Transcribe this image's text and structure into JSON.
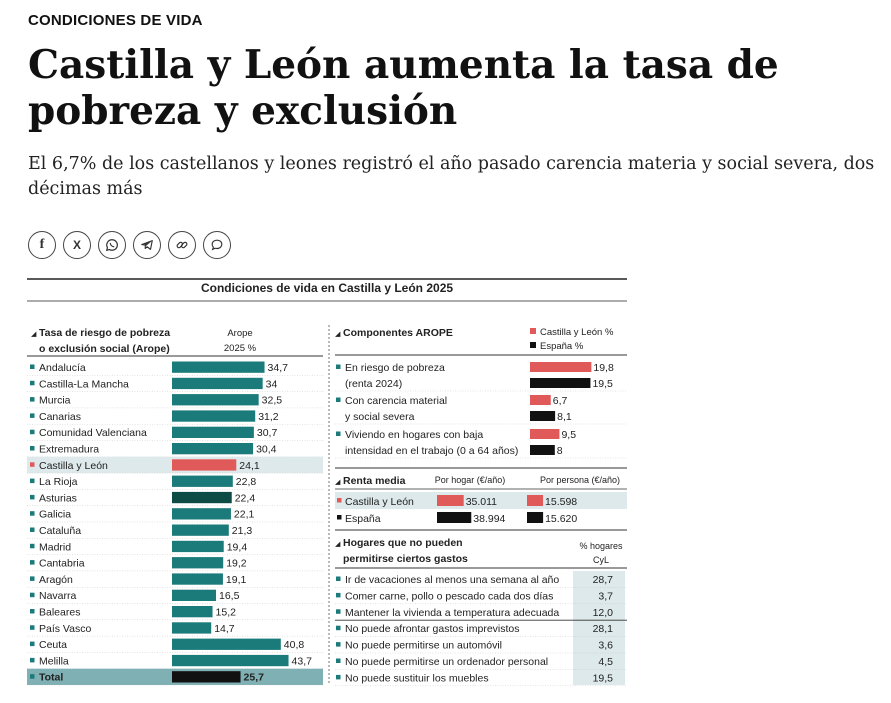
{
  "article": {
    "kicker": "CONDICIONES DE VIDA",
    "headline": "Castilla y León aumenta la tasa de pobreza y exclusión",
    "subtitle": "El 6,7% de los castellanos y leones registró el año pasado carencia materia y social severa, dos décimas más"
  },
  "share_buttons": [
    {
      "name": "facebook",
      "glyph": "f"
    },
    {
      "name": "x",
      "glyph": "X"
    },
    {
      "name": "whatsapp",
      "glyph": ""
    },
    {
      "name": "telegram",
      "glyph": ""
    },
    {
      "name": "link",
      "glyph": ""
    },
    {
      "name": "comment",
      "glyph": ""
    }
  ],
  "colors": {
    "teal": "#1b7a7a",
    "dark_teal": "#0e4b45",
    "red": "#e05a5a",
    "black": "#111111",
    "highlight": "#dde9ea"
  },
  "chart_data": [
    {
      "type": "bar",
      "title": "Condiciones de vida en Castilla y León 2025",
      "panel_title": "Tasa de riesgo de pobreza o exclusión social (Arope)",
      "col_header": "Arope 2025 %",
      "categories": [
        "Andalucía",
        "Castilla-La Mancha",
        "Murcia",
        "Canarias",
        "Comunidad Valenciana",
        "Extremadura",
        "Castilla y León",
        "La Rioja",
        "Asturias",
        "Galicia",
        "Cataluña",
        "Madrid",
        "Cantabria",
        "Aragón",
        "Navarra",
        "Baleares",
        "País Vasco",
        "Ceuta",
        "Melilla",
        "Total"
      ],
      "labels": [
        "34,7",
        "34",
        "32,5",
        "31,2",
        "30,7",
        "30,4",
        "24,1",
        "22,8",
        "22,4",
        "22,1",
        "21,3",
        "19,4",
        "19,2",
        "19,1",
        "16,5",
        "15,2",
        "14,7",
        "40,8",
        "43,7",
        "25,7"
      ],
      "values": [
        34.7,
        34,
        32.5,
        31.2,
        30.7,
        30.4,
        24.1,
        22.8,
        22.4,
        22.1,
        21.3,
        19.4,
        19.2,
        19.1,
        16.5,
        15.2,
        14.7,
        40.8,
        43.7,
        25.7
      ],
      "highlight": "Castilla y León"
    },
    {
      "type": "bar",
      "panel_title": "Componentes AROPE",
      "legend": [
        "Castilla y León %",
        "España %"
      ],
      "groups": [
        {
          "label": [
            "En riesgo de pobreza",
            "(renta 2024)"
          ],
          "cyl": 19.8,
          "esp": 19.5,
          "cyl_label": "19,8",
          "esp_label": "19,5"
        },
        {
          "label": [
            "Con carencia material",
            "y social severa"
          ],
          "cyl": 6.7,
          "esp": 8.1,
          "cyl_label": "6,7",
          "esp_label": "8,1"
        },
        {
          "label": [
            "Viviendo en hogares con baja",
            "intensidad en el trabajo (0 a 64 años)"
          ],
          "cyl": 9.5,
          "esp": 8,
          "cyl_label": "9,5",
          "esp_label": "8"
        }
      ]
    },
    {
      "type": "bar",
      "panel_title": "Renta media",
      "col_headers": [
        "Por hogar (€/año)",
        "Por persona (€/año)"
      ],
      "rows": [
        {
          "name": "Castilla y León",
          "hogar": 35011,
          "persona": 15598,
          "hogar_label": "35.011",
          "persona_label": "15.598"
        },
        {
          "name": "España",
          "hogar": 38994,
          "persona": 15620,
          "hogar_label": "38.994",
          "persona_label": "15.620"
        }
      ]
    },
    {
      "type": "table",
      "panel_title": [
        "Hogares que no pueden",
        "permitirse ciertos gastos"
      ],
      "col_header": [
        "% hogares",
        "CyL"
      ],
      "rows": [
        {
          "label": "Ir de vacaciones al menos una semana al año",
          "value": "28,7"
        },
        {
          "label": "Comer carne, pollo o pescado cada dos días",
          "value": "3,7"
        },
        {
          "label": "Mantener la vivienda a temperatura adecuada",
          "value": "12,0"
        },
        {
          "label": "No puede afrontar gastos imprevistos",
          "value": "28,1"
        },
        {
          "label": "No puede permitirse un automóvil",
          "value": "3,6"
        },
        {
          "label": "No puede permitirse un ordenador personal",
          "value": "4,5"
        },
        {
          "label": "No puede sustituir los muebles",
          "value": "19,5"
        }
      ]
    }
  ]
}
